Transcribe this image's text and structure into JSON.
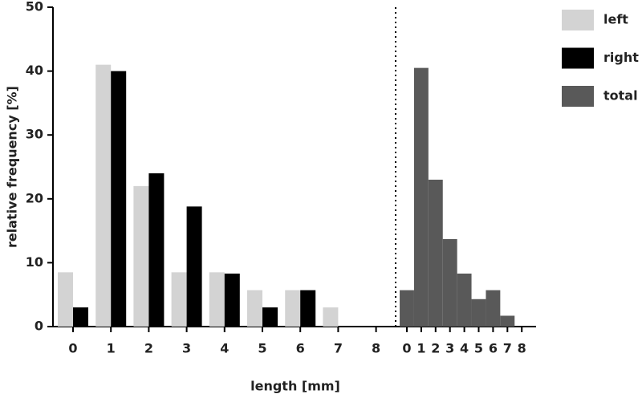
{
  "chart_data": [
    {
      "type": "bar",
      "y_label": "relative frequency [%]",
      "x_label": "length [mm]",
      "categories": [
        0,
        1,
        2,
        3,
        4,
        5,
        6,
        7,
        8
      ],
      "series": [
        {
          "name": "left",
          "color": "#d3d3d3",
          "values": [
            8.5,
            41,
            22,
            8.5,
            8.5,
            5.7,
            5.7,
            3,
            0
          ]
        },
        {
          "name": "right",
          "color": "#000000",
          "values": [
            3,
            40,
            24,
            18.8,
            8.3,
            3,
            5.7,
            0,
            0
          ]
        }
      ],
      "ylim": [
        0,
        50
      ],
      "yticks": [
        0,
        10,
        20,
        30,
        40,
        50
      ],
      "grid": false,
      "legend": "upper right"
    },
    {
      "type": "histogram",
      "categories": [
        0,
        1,
        2,
        3,
        4,
        5,
        6,
        7,
        8
      ],
      "series": [
        {
          "name": "total",
          "color": "#595959",
          "values": [
            5.7,
            40.5,
            23,
            13.7,
            8.3,
            4.3,
            5.7,
            1.7,
            0
          ]
        }
      ],
      "ylim": [
        0,
        50
      ]
    }
  ]
}
